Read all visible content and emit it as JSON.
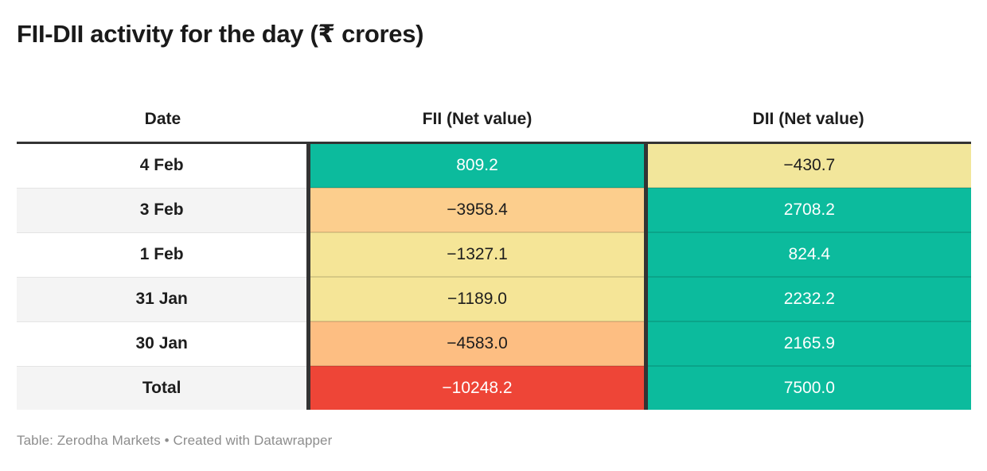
{
  "title": "FII-DII activity for the day (₹ crores)",
  "table": {
    "columns": [
      {
        "label": "Date"
      },
      {
        "label": "FII (Net value)"
      },
      {
        "label": "DII (Net value)"
      }
    ],
    "rows": [
      {
        "date": "4 Feb",
        "fii": "809.2",
        "dii": "−430.7",
        "fii_bg": "#0cbb9d",
        "fii_fg": "#ffffff",
        "dii_bg": "#f2e69b",
        "dii_fg": "#1d1d1d"
      },
      {
        "date": "3 Feb",
        "fii": "−3958.4",
        "dii": "2708.2",
        "fii_bg": "#fcce8d",
        "fii_fg": "#1d1d1d",
        "dii_bg": "#0cbb9d",
        "dii_fg": "#ffffff"
      },
      {
        "date": "1 Feb",
        "fii": "−1327.1",
        "dii": "824.4",
        "fii_bg": "#f5e597",
        "fii_fg": "#1d1d1d",
        "dii_bg": "#0cbb9d",
        "dii_fg": "#ffffff"
      },
      {
        "date": "31 Jan",
        "fii": "−1189.0",
        "dii": "2232.2",
        "fii_bg": "#f5e597",
        "fii_fg": "#1d1d1d",
        "dii_bg": "#0cbb9d",
        "dii_fg": "#ffffff"
      },
      {
        "date": "30 Jan",
        "fii": "−4583.0",
        "dii": "2165.9",
        "fii_bg": "#fdbe82",
        "fii_fg": "#1d1d1d",
        "dii_bg": "#0cbb9d",
        "dii_fg": "#ffffff"
      },
      {
        "date": "Total",
        "fii": "−10248.2",
        "dii": "7500.0",
        "fii_bg": "#ee4537",
        "fii_fg": "#ffffff",
        "dii_bg": "#0cbb9d",
        "dii_fg": "#ffffff"
      }
    ]
  },
  "footer": {
    "attribution": "Table: Zerodha Markets • Created with Datawrapper"
  },
  "colors": {
    "positive_fill": "#0cbb9d",
    "mild_negative_fill": "#f5e597",
    "medium_negative_fill": "#fcce8d",
    "strong_negative_fill": "#fdbe82",
    "total_negative_fill": "#ee4537",
    "header_rule": "#333333",
    "row_stripe": "#f4f4f4",
    "title_text": "#1a1a1a",
    "footer_text": "#8d8d8d"
  },
  "chart_data": {
    "type": "table",
    "title": "FII-DII activity for the day (₹ crores)",
    "categories": [
      "4 Feb",
      "3 Feb",
      "1 Feb",
      "31 Jan",
      "30 Jan",
      "Total"
    ],
    "series": [
      {
        "name": "FII (Net value)",
        "values": [
          809.2,
          -3958.4,
          -1327.1,
          -1189.0,
          -4583.0,
          -10248.2
        ]
      },
      {
        "name": "DII (Net value)",
        "values": [
          -430.7,
          2708.2,
          824.4,
          2232.2,
          2165.9,
          7500.0
        ]
      }
    ],
    "notes": "Heatmap-colored table: green fills for positive net values, yellow/orange fills for negative net values, red fill for negative total",
    "source": "Table: Zerodha Markets • Created with Datawrapper"
  }
}
